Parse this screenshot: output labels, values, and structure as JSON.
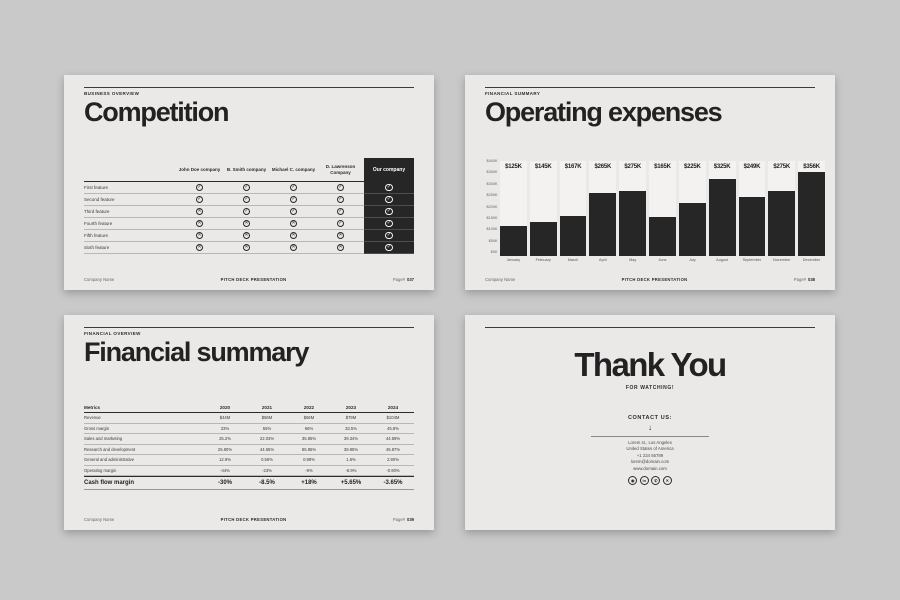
{
  "canvas": {
    "background": "#c9c9c9",
    "slide_background": "#eae9e7",
    "accent_dark": "#262626"
  },
  "slides": {
    "competition": {
      "eyebrow": "BUSINESS OVERVIEW",
      "title": "Competition",
      "table": {
        "competitor_headers": [
          "John Doe company",
          "B. Smith company",
          "Michael C. company",
          "D. Lawrenson Company"
        ],
        "our_company_header": "Our company",
        "check_icon": "✓",
        "cross_icon": "✕",
        "rows": [
          {
            "label": "First feature",
            "competitors": [
              true,
              true,
              true,
              true
            ],
            "our": true
          },
          {
            "label": "Second feature",
            "competitors": [
              true,
              true,
              true,
              true
            ],
            "our": true
          },
          {
            "label": "Third feature",
            "competitors": [
              false,
              true,
              true,
              true
            ],
            "our": true
          },
          {
            "label": "Fourth feature",
            "competitors": [
              false,
              false,
              false,
              true
            ],
            "our": true
          },
          {
            "label": "Fifth feature",
            "competitors": [
              false,
              false,
              false,
              false
            ],
            "our": true
          },
          {
            "label": "Sixth feature",
            "competitors": [
              false,
              false,
              false,
              false
            ],
            "our": true
          }
        ]
      },
      "footer": {
        "company": "Company Name",
        "center": "PITCH DECK PRESENTATION",
        "page_label": "Page#",
        "page_number": "037"
      }
    },
    "operating_expenses": {
      "eyebrow": "FINANCIAL SUMMARY",
      "title": "Operating expenses",
      "footer": {
        "company": "Company Name",
        "center": "PITCH DECK PRESENTATION",
        "page_label": "Page#",
        "page_number": "038"
      }
    },
    "financial_summary": {
      "eyebrow": "FINANCIAL OVERVIEW",
      "title": "Financial summary",
      "table": {
        "headers": [
          "Metrics",
          "2020",
          "2021",
          "2022",
          "2023",
          "2024"
        ],
        "rows": [
          [
            "Revenue",
            "$44M",
            "$56M",
            "$66M",
            "$79M",
            "$104M"
          ],
          [
            "Gross margin",
            "33%",
            "55%",
            "66%",
            "33.5%",
            "45.8%"
          ],
          [
            "Sales and marketing",
            "25.2%",
            "22.03%",
            "35.85%",
            "39.34%",
            "44.59%"
          ],
          [
            "Research and development",
            "25.80%",
            "44.65%",
            "85.85%",
            "39.85%",
            "45.87%"
          ],
          [
            "General and administrative",
            "12.9%",
            "0.56%",
            "0.98%",
            "1.6%",
            "2.90%"
          ],
          [
            "Operating margin",
            "-44%",
            "-23%",
            "-9%",
            "-8.9%",
            "-0.90%"
          ]
        ],
        "summary_row": [
          "Cash flow margin",
          "-30%",
          "-8.5%",
          "+18%",
          "+5.65%",
          "-3.65%"
        ]
      },
      "footer": {
        "company": "Company Name",
        "center": "PITCH DECK PRESENTATION",
        "page_label": "Page#",
        "page_number": "039"
      }
    },
    "thank_you": {
      "title": "Thank You",
      "subtitle": "FOR WATCHING!",
      "contact_heading": "CONTACT US:",
      "arrow_icon": "↓",
      "address_lines": [
        "Lorem st., Los Angeles",
        "United States of America",
        "+1 234 56789",
        "lorem@domain.com",
        "www.domain.com"
      ],
      "social_icons": [
        "instagram",
        "linkedin",
        "whatsapp",
        "x"
      ]
    }
  },
  "chart_data": {
    "type": "bar",
    "title": "Operating expenses",
    "categories": [
      "January",
      "February",
      "March",
      "April",
      "May",
      "June",
      "July",
      "August",
      "September",
      "November",
      "December"
    ],
    "values": [
      125,
      145,
      167,
      265,
      275,
      165,
      225,
      325,
      249,
      275,
      356
    ],
    "value_labels": [
      "$125K",
      "$145K",
      "$167K",
      "$265K",
      "$275K",
      "$165K",
      "$225K",
      "$325K",
      "$249K",
      "$275K",
      "$356K"
    ],
    "y_ticks": [
      "$400K",
      "$350K",
      "$300K",
      "$250K",
      "$200K",
      "$150K",
      "$100K",
      "$50K",
      "$0K"
    ],
    "ylim": [
      0,
      400
    ],
    "xlabel": "",
    "ylabel": "",
    "legend": false,
    "grid": false,
    "bar_color": "#262626",
    "column_background": "#f3f2f0"
  }
}
